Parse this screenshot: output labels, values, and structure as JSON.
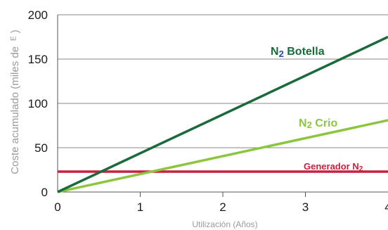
{
  "chart_data": {
    "type": "line",
    "xlabel": "Utilización (Años)",
    "ylabel": "Coste acumulado (miles de  ᴱ )",
    "xlim": [
      0,
      4
    ],
    "ylim": [
      0,
      200
    ],
    "x_ticks": [
      "0",
      "1",
      "2",
      "3",
      "4"
    ],
    "y_ticks": [
      "0",
      "50",
      "100",
      "150",
      "200"
    ],
    "grid": "horizontal",
    "series": [
      {
        "name": "N2 Botella",
        "label_main": "N",
        "label_sub": "2",
        "label_rest": " Botella",
        "color": "#1a6b3c",
        "x": [
          0,
          4
        ],
        "y": [
          0,
          175
        ]
      },
      {
        "name": "N2 Crio",
        "label_main": "N",
        "label_sub": "2",
        "label_rest": " Crio",
        "color": "#8cc63f",
        "x": [
          0,
          4
        ],
        "y": [
          0,
          81
        ]
      },
      {
        "name": "Generador N2",
        "label_main": "Generador N",
        "label_sub": "2",
        "label_rest": "",
        "color": "#c8203f",
        "x": [
          0,
          4
        ],
        "y": [
          23,
          23
        ]
      }
    ]
  }
}
